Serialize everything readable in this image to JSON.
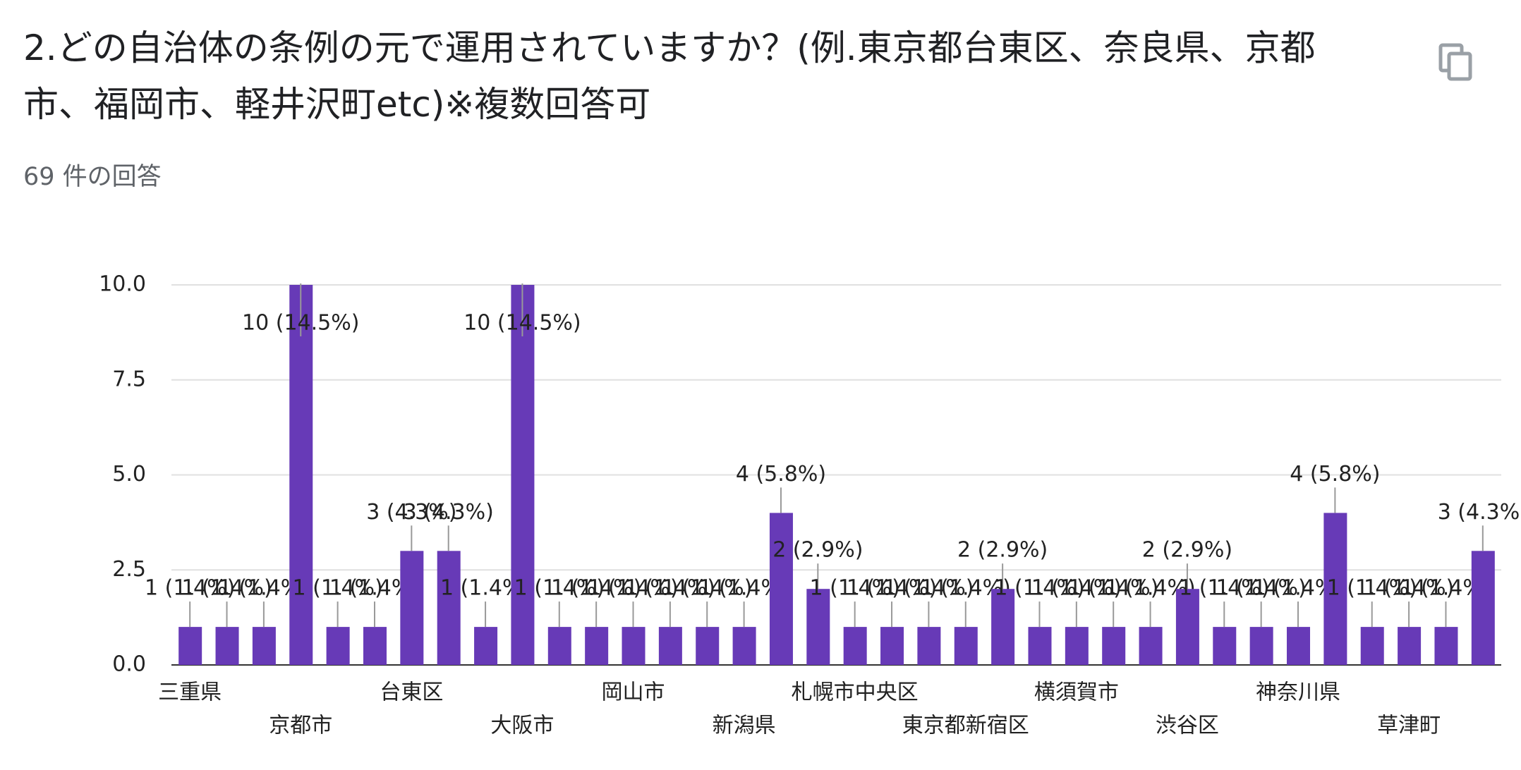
{
  "header": {
    "title": "2.どの自治体の条例の元で運用されていますか？(例.東京都台東区、奈良県、京都市、福岡市、軽井沢町etc)※複数回答可",
    "subtitle": "69 件の回答"
  },
  "chart_data": {
    "type": "bar",
    "categories": [
      "三重県",
      null,
      null,
      "京都市",
      null,
      null,
      "台東区",
      null,
      null,
      "大阪市",
      null,
      null,
      "岡山市",
      null,
      null,
      "新潟県",
      null,
      null,
      "札幌市中央区",
      null,
      null,
      "東京都新宿区",
      null,
      null,
      "横須賀市",
      null,
      null,
      "渋谷区",
      null,
      null,
      "神奈川県",
      null,
      null,
      "草津町",
      null,
      null
    ],
    "values": [
      1,
      1,
      1,
      10,
      1,
      1,
      3,
      3,
      1,
      10,
      1,
      1,
      1,
      1,
      1,
      1,
      4,
      2,
      1,
      1,
      1,
      1,
      2,
      1,
      1,
      1,
      1,
      2,
      1,
      1,
      1,
      4,
      1,
      1,
      1,
      3
    ],
    "value_labels": [
      "1 (1.4%)",
      "1 (1.4%)",
      "1 (1.4%)",
      "10 (14.5%)",
      "1 (1.4%)",
      "1 (1.4%)",
      "3 (4.3%)",
      "3 (4.3%)",
      "1 (1.4%)",
      "10 (14.5%)",
      "1 (1.4%)",
      "1 (1.4%)",
      "1 (1.4%)",
      "1 (1.4%)",
      "1 (1.4%)",
      "1 (1.4%)",
      "4 (5.8%)",
      "2 (2.9%)",
      "1 (1.4%)",
      "1 (1.4%)",
      "1 (1.4%)",
      "1 (1.4%)",
      "2 (2.9%)",
      "1 (1.4%)",
      "1 (1.4%)",
      "1 (1.4%)",
      "1 (1.4%)",
      "2 (2.9%)",
      "1 (1.4%)",
      "1 (1.4%)",
      "1 (1.4%)",
      "4 (5.8%)",
      "1 (1.4%)",
      "1 (1.4%)",
      "1 (1.4%)",
      "3 (4.3%)"
    ],
    "color": "#673ab7",
    "ylim": [
      0,
      10
    ],
    "yticks": [
      {
        "value": 0,
        "label": "0.0"
      },
      2.5,
      {
        "value": 5,
        "label": "5.0"
      },
      7.5,
      {
        "value": 10,
        "label": "10.0"
      }
    ],
    "grid": true
  }
}
